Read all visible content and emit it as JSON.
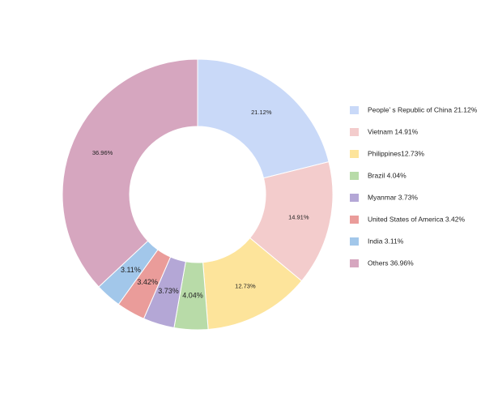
{
  "chart_data": {
    "type": "pie",
    "variant": "donut",
    "title": "",
    "start_angle_deg": 90,
    "direction": "clockwise",
    "legend_position": "right",
    "slices": [
      {
        "name": "People’ s Republic of China",
        "value": 21.12,
        "label": "21.12%",
        "legend": "People’ s Republic of China 21.12%",
        "color": "#c9d9f8"
      },
      {
        "name": "Vietnam",
        "value": 14.91,
        "label": "14.91%",
        "legend": "Vietnam 14.91%",
        "color": "#f3cccc"
      },
      {
        "name": "Philippines",
        "value": 12.73,
        "label": "12.73%",
        "legend": "Philippines12.73%",
        "color": "#fde49b"
      },
      {
        "name": "Brazil",
        "value": 4.04,
        "label": "4.04%",
        "legend": "Brazil 4.04%",
        "color": "#b8dba8"
      },
      {
        "name": "Myanmar",
        "value": 3.73,
        "label": "3.73%",
        "legend": "Myanmar 3.73%",
        "color": "#b4a7d6"
      },
      {
        "name": "United States of America",
        "value": 3.42,
        "label": "3.42%",
        "legend": "United States of America 3.42%",
        "color": "#ea9c9a"
      },
      {
        "name": "India",
        "value": 3.11,
        "label": "3.11%",
        "legend": "India 3.11%",
        "color": "#a2c7ea"
      },
      {
        "name": "Others",
        "value": 36.96,
        "label": "36.96%",
        "legend": "Others 36.96%",
        "color": "#d6a6bf"
      }
    ]
  }
}
